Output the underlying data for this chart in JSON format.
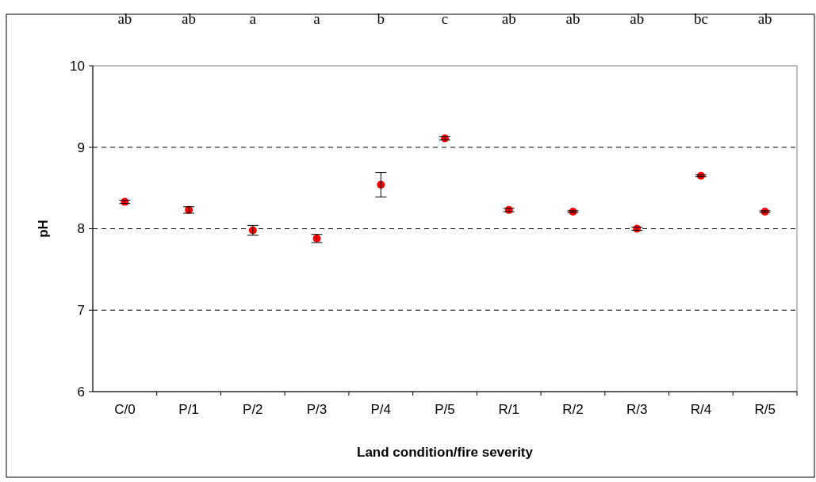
{
  "chart_data": {
    "type": "scatter",
    "xlabel": "Land condition/fire severity",
    "ylabel": "pH",
    "categories": [
      "C/0",
      "P/1",
      "P/2",
      "P/3",
      "P/4",
      "P/5",
      "R/1",
      "R/2",
      "R/3",
      "R/4",
      "R/5"
    ],
    "values": [
      8.33,
      8.23,
      7.98,
      7.88,
      8.54,
      9.11,
      8.23,
      8.21,
      8.0,
      8.65,
      8.21
    ],
    "errors": [
      0.02,
      0.04,
      0.06,
      0.05,
      0.15,
      0.02,
      0.02,
      0.01,
      0.02,
      0.01,
      0.01
    ],
    "color": "#ff0000",
    "marker": "circle",
    "ylim": [
      6,
      10
    ],
    "yticks": [
      6,
      7,
      8,
      9,
      10
    ],
    "grid": "y",
    "annotations": [
      "ab",
      "ab",
      "a",
      "a",
      "b",
      "c",
      "ab",
      "ab",
      "ab",
      "bc",
      "ab"
    ]
  }
}
